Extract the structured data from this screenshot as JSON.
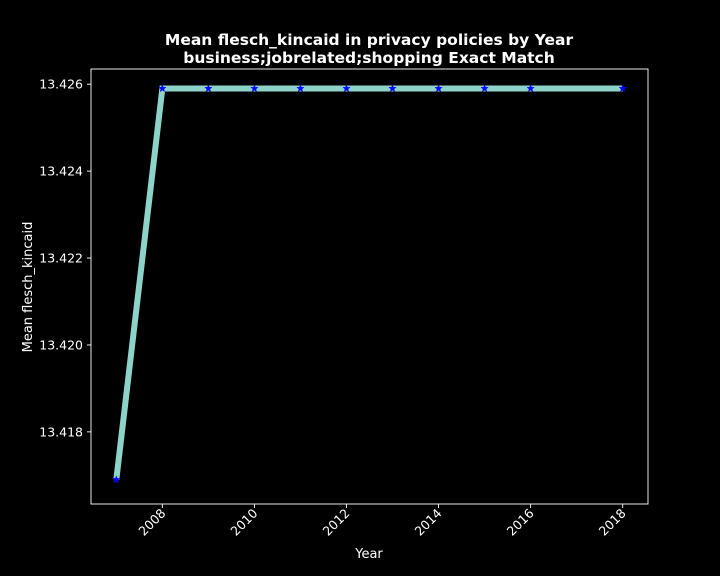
{
  "chart_data": {
    "type": "line",
    "title": "Mean flesch_kincaid in privacy policies by Year",
    "subtitle": "business;jobrelated;shopping Exact Match",
    "xlabel": "Year",
    "ylabel": "Mean flesch_kincaid",
    "x": [
      2007,
      2008,
      2009,
      2010,
      2011,
      2012,
      2013,
      2014,
      2015,
      2016,
      2018
    ],
    "series": [
      {
        "values": [
          13.4169,
          13.4259,
          13.4259,
          13.4259,
          13.4259,
          13.4259,
          13.4259,
          13.4259,
          13.4259,
          13.4259,
          13.4259
        ]
      }
    ],
    "xlim": [
      2006.45,
      2018.55
    ],
    "ylim": [
      13.41634,
      13.42635
    ],
    "xticks": [
      "2008",
      "2010",
      "2012",
      "2014",
      "2016",
      "2018"
    ],
    "yticks": [
      "13.418",
      "13.420",
      "13.422",
      "13.424",
      "13.426"
    ],
    "grid": false,
    "legend": "none",
    "colors": {
      "background": "#000000",
      "line": "#8dd3c7",
      "marker": "#0000ff",
      "text": "#ffffff",
      "axes": "#ffffff"
    }
  }
}
